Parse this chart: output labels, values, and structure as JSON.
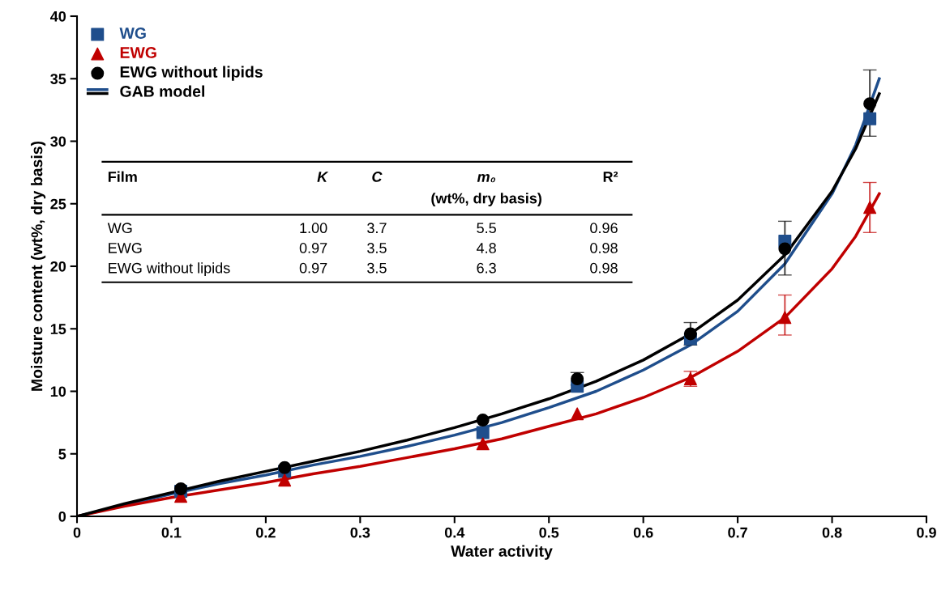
{
  "chart_data": {
    "type": "scatter",
    "xlabel": "Water activity",
    "ylabel": "Moisture content (wt%, dry basis)",
    "xlim": [
      0,
      0.9
    ],
    "xticks": [
      0,
      0.1,
      0.2,
      0.3,
      0.4,
      0.5,
      0.6,
      0.7,
      0.8,
      0.9
    ],
    "ylim": [
      0,
      40
    ],
    "yticks": [
      0,
      5,
      10,
      15,
      20,
      25,
      30,
      35,
      40
    ],
    "grid": false,
    "legend": "top left",
    "x": [
      0.11,
      0.22,
      0.43,
      0.53,
      0.65,
      0.75,
      0.84
    ],
    "series": [
      {
        "name": "WG",
        "marker": "square",
        "color": "#1f4e8c",
        "values": [
          2.0,
          3.6,
          6.7,
          10.4,
          14.2,
          22.0,
          31.8
        ]
      },
      {
        "name": "EWG",
        "marker": "triangle",
        "color": "#c00000",
        "values": [
          1.6,
          2.9,
          5.8,
          8.2,
          11.0,
          15.9,
          24.7
        ],
        "errors": [
          null,
          null,
          null,
          null,
          0.6,
          [
            14.5,
            17.7
          ],
          [
            22.7,
            26.7
          ]
        ]
      },
      {
        "name": "EWG without lipids",
        "marker": "circle",
        "color": "#000000",
        "values": [
          2.2,
          3.9,
          7.7,
          11.0,
          14.6,
          21.4,
          33.0
        ],
        "errors": [
          null,
          null,
          null,
          0.5,
          [
            13.7,
            15.5
          ],
          [
            19.3,
            23.6
          ],
          [
            30.4,
            35.7
          ]
        ]
      },
      {
        "name": "GAB model",
        "type": "line",
        "marker": "none",
        "color": "#1f4e8c",
        "x": [
          0,
          0.05,
          0.1,
          0.15,
          0.2,
          0.25,
          0.3,
          0.35,
          0.4,
          0.45,
          0.5,
          0.55,
          0.6,
          0.65,
          0.7,
          0.75,
          0.8,
          0.825,
          0.85
        ],
        "values": [
          0,
          0.9,
          1.8,
          2.6,
          3.3,
          4.1,
          4.8,
          5.6,
          6.5,
          7.5,
          8.7,
          10.0,
          11.7,
          13.7,
          16.4,
          20.2,
          25.8,
          29.7,
          35.0
        ]
      },
      {
        "type": "line",
        "marker": "none",
        "color": "#c00000",
        "x": [
          0,
          0.05,
          0.1,
          0.15,
          0.2,
          0.25,
          0.3,
          0.35,
          0.4,
          0.45,
          0.5,
          0.55,
          0.6,
          0.65,
          0.7,
          0.75,
          0.8,
          0.825,
          0.85
        ],
        "values": [
          0,
          0.8,
          1.5,
          2.1,
          2.7,
          3.4,
          4.0,
          4.7,
          5.4,
          6.2,
          7.2,
          8.2,
          9.5,
          11.1,
          13.2,
          15.9,
          19.8,
          22.4,
          25.8
        ]
      },
      {
        "type": "line",
        "marker": "none",
        "color": "#000000",
        "x": [
          0,
          0.05,
          0.1,
          0.15,
          0.2,
          0.25,
          0.3,
          0.35,
          0.4,
          0.45,
          0.5,
          0.55,
          0.6,
          0.65,
          0.7,
          0.75,
          0.8,
          0.825,
          0.85
        ],
        "values": [
          0,
          1.0,
          1.9,
          2.8,
          3.6,
          4.4,
          5.2,
          6.1,
          7.1,
          8.2,
          9.4,
          10.8,
          12.5,
          14.6,
          17.3,
          20.9,
          26.0,
          29.4,
          33.8
        ]
      }
    ],
    "annotations": [
      "Film",
      "K",
      "C",
      "m₀\n(wt%, dry basis)",
      "R²",
      "WG",
      "1.00",
      "3.7",
      "5.5",
      "0.96",
      "EWG",
      "0.97",
      "3.5",
      "4.8",
      "0.98",
      "EWG without lipids",
      "0.97",
      "3.5",
      "6.3",
      "0.98"
    ]
  }
}
